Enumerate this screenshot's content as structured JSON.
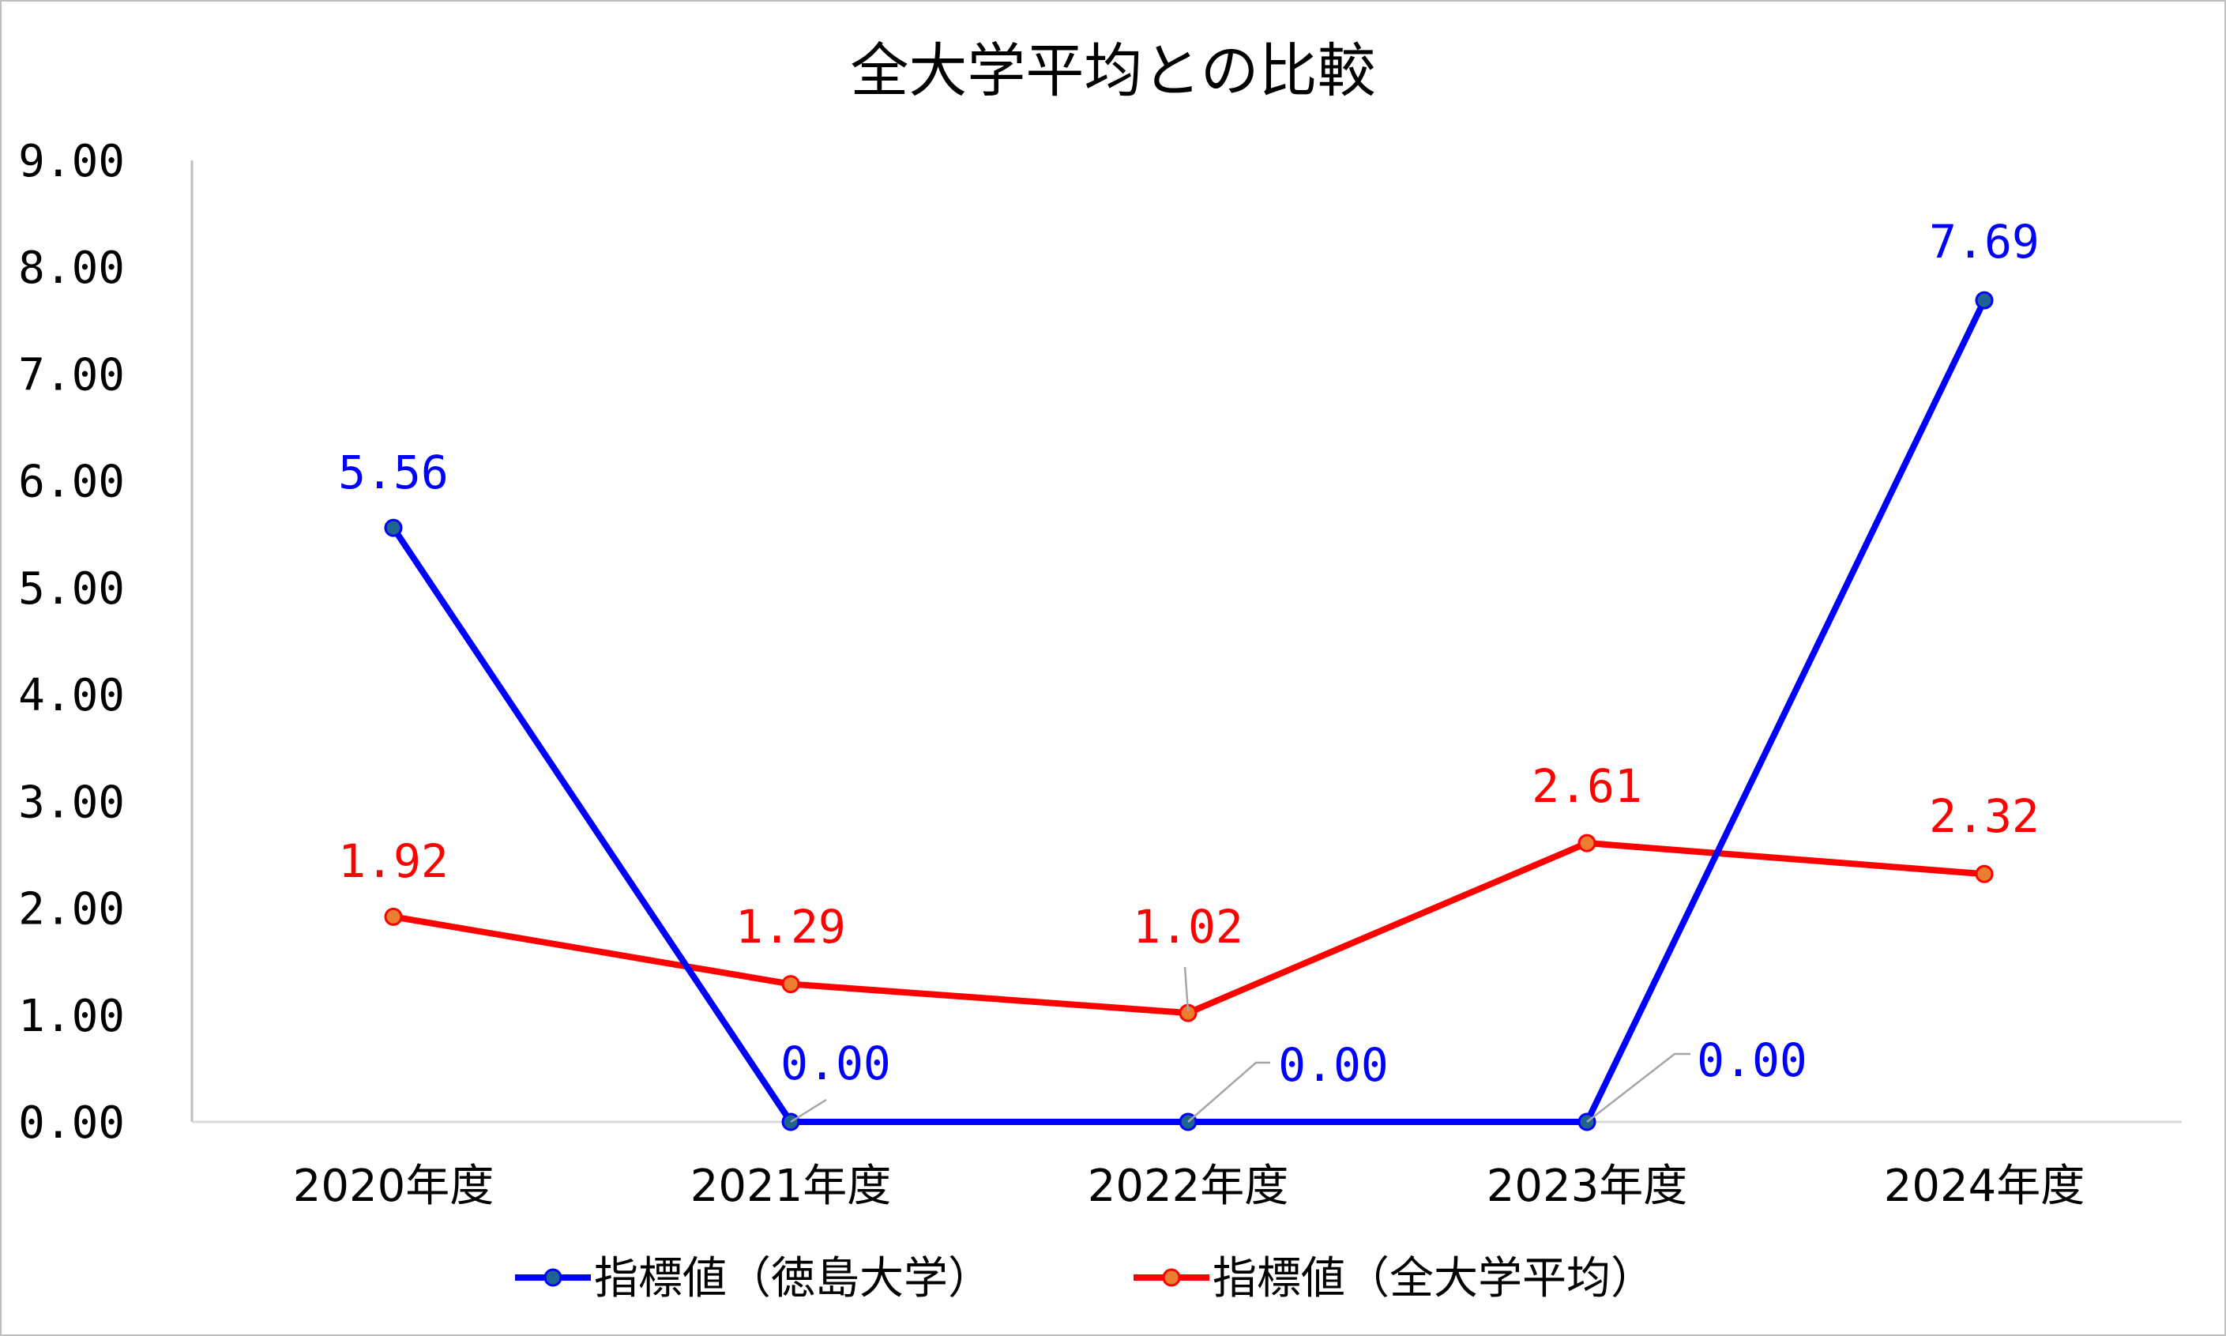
{
  "chart_data": {
    "type": "line",
    "title": "全大学平均との比較",
    "xlabel": "",
    "ylabel": "",
    "categories": [
      "2020年度",
      "2021年度",
      "2022年度",
      "2023年度",
      "2024年度"
    ],
    "ylim": [
      0,
      9
    ],
    "yticks": [
      "0.00",
      "1.00",
      "2.00",
      "3.00",
      "4.00",
      "5.00",
      "6.00",
      "7.00",
      "8.00",
      "9.00"
    ],
    "grid": false,
    "legend_position": "bottom",
    "series": [
      {
        "name": "指標値（徳島大学）",
        "color": "#0000ff",
        "marker_fill": "#1f6391",
        "values": [
          5.56,
          0.0,
          0.0,
          0.0,
          7.69
        ],
        "labels": [
          "5.56",
          "0.00",
          "0.00",
          "0.00",
          "7.69"
        ]
      },
      {
        "name": "指標値（全大学平均）",
        "color": "#ff0000",
        "marker_fill": "#ed7d31",
        "values": [
          1.92,
          1.29,
          1.02,
          2.61,
          2.32
        ],
        "labels": [
          "1.92",
          "1.29",
          "1.02",
          "2.61",
          "2.32"
        ]
      }
    ]
  }
}
